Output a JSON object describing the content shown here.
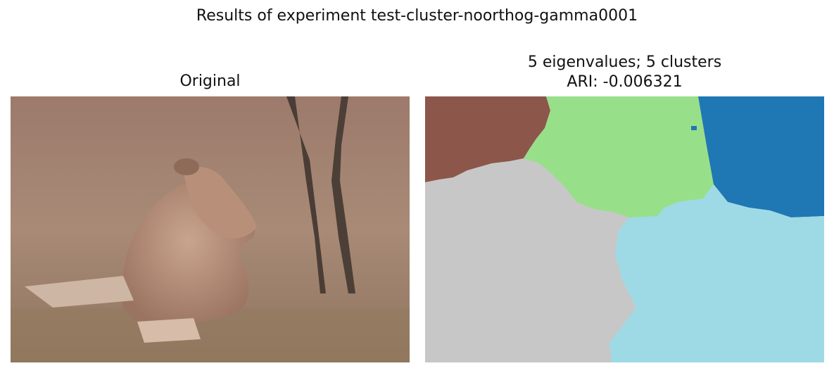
{
  "figure": {
    "suptitle": "Results of experiment test-cluster-noorthog-gamma0001"
  },
  "panels": [
    {
      "title": "Original",
      "image_description_icon": "photo-lioness-in-savanna"
    },
    {
      "title_line1": "5 eigenvalues; 5 clusters",
      "title_line2": "ARI: -0.006321",
      "colors": {
        "brown": "#8c564b",
        "green": "#98df8a",
        "blue": "#1f77b4",
        "gray": "#c7c7c7",
        "cyan": "#9edae5"
      }
    }
  ]
}
